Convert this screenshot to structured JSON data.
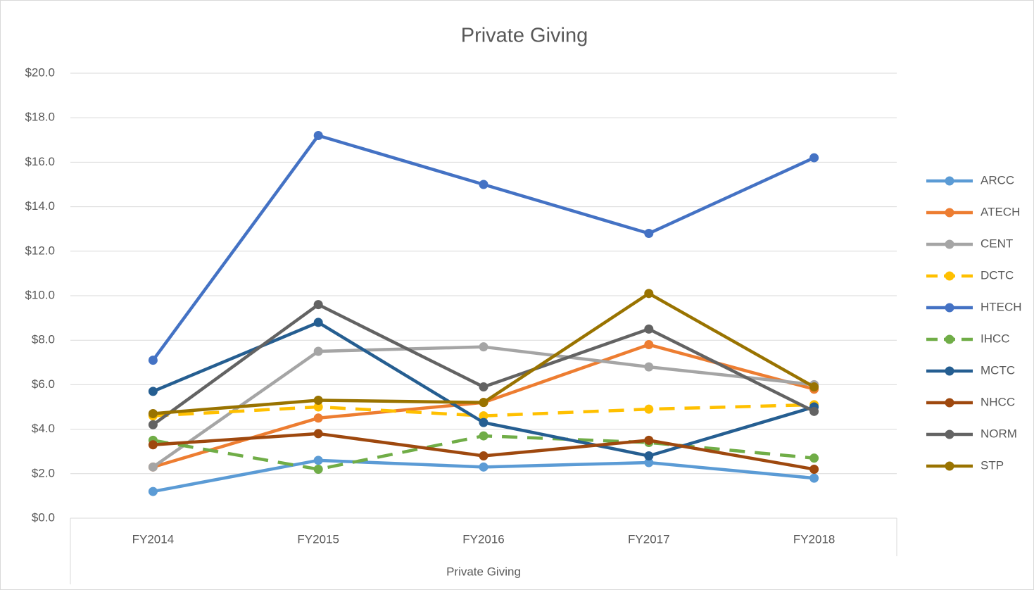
{
  "chart_data": {
    "type": "line",
    "title": "Private Giving",
    "x_label": "Private Giving",
    "categories": [
      "FY2014",
      "FY2015",
      "FY2016",
      "FY2017",
      "FY2018"
    ],
    "ylim": [
      0,
      20
    ],
    "yticks": [
      {
        "value": 0,
        "label": "$0.0"
      },
      {
        "value": 2,
        "label": "$2.0"
      },
      {
        "value": 4,
        "label": "$4.0"
      },
      {
        "value": 6,
        "label": "$6.0"
      },
      {
        "value": 8,
        "label": "$8.0"
      },
      {
        "value": 10,
        "label": "$10.0"
      },
      {
        "value": 12,
        "label": "$12.0"
      },
      {
        "value": 14,
        "label": "$14.0"
      },
      {
        "value": 16,
        "label": "$16.0"
      },
      {
        "value": 18,
        "label": "$18.0"
      },
      {
        "value": 20,
        "label": "$20.0"
      }
    ],
    "grid": true,
    "legend": "right",
    "series": [
      {
        "name": "ARCC",
        "color": "#5b9bd5",
        "values": [
          1.2,
          2.6,
          2.3,
          2.5,
          1.8
        ]
      },
      {
        "name": "ATECH",
        "color": "#ed7d31",
        "values": [
          2.3,
          4.5,
          5.2,
          7.8,
          5.8
        ]
      },
      {
        "name": "CENT",
        "color": "#a5a5a5",
        "values": [
          2.3,
          7.5,
          7.7,
          6.8,
          6.0
        ]
      },
      {
        "name": "DCTC",
        "color": "#ffc000",
        "dashed": true,
        "values": [
          4.6,
          5.0,
          4.6,
          4.9,
          5.1
        ]
      },
      {
        "name": "HTECH",
        "color": "#4472c4",
        "values": [
          7.1,
          17.2,
          15.0,
          12.8,
          16.2
        ]
      },
      {
        "name": "IHCC",
        "color": "#70ad47",
        "dashed": true,
        "values": [
          3.5,
          2.2,
          3.7,
          3.4,
          2.7
        ]
      },
      {
        "name": "MCTC",
        "color": "#255e91",
        "values": [
          5.7,
          8.8,
          4.3,
          2.8,
          5.0
        ]
      },
      {
        "name": "NHCC",
        "color": "#9e480e",
        "values": [
          3.3,
          3.8,
          2.8,
          3.5,
          2.2
        ]
      },
      {
        "name": "NORM",
        "color": "#636363",
        "values": [
          4.2,
          9.6,
          5.9,
          8.5,
          4.8
        ]
      },
      {
        "name": "STP",
        "color": "#997300",
        "values": [
          4.7,
          5.3,
          5.2,
          10.1,
          5.9
        ]
      }
    ]
  }
}
